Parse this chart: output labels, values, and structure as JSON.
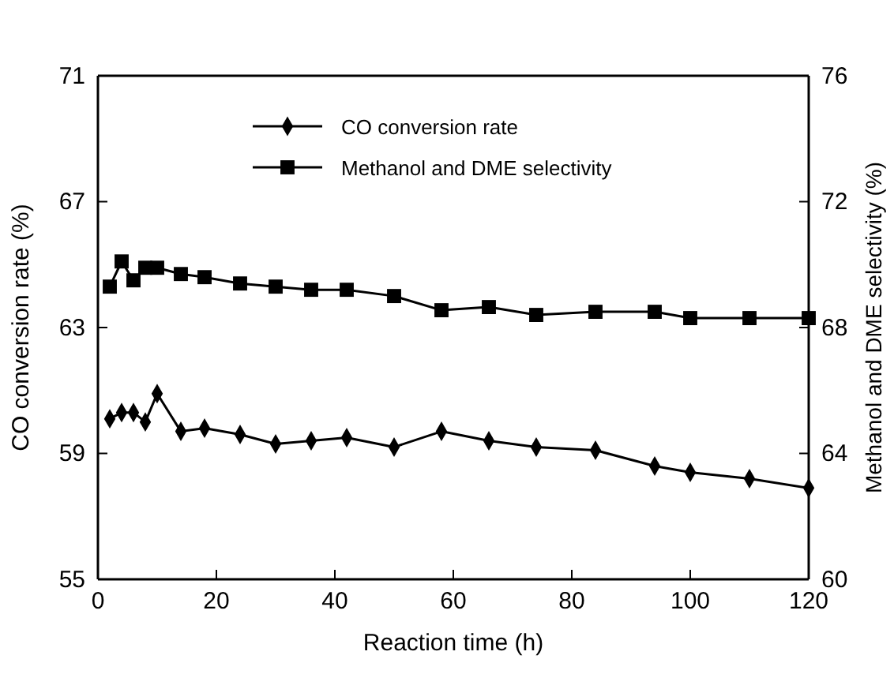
{
  "chart_data": {
    "type": "line",
    "xlabel": "Reaction time (h)",
    "ylabel": "CO conversion rate (%)",
    "y2label": "Methanol and DME selectivity (%)",
    "x": [
      2,
      4,
      6,
      8,
      10,
      14,
      18,
      24,
      30,
      36,
      42,
      50,
      58,
      66,
      74,
      84,
      94,
      100,
      110,
      120
    ],
    "series": [
      {
        "name": "CO conversion rate",
        "color": "#000000",
        "marker": "diamond",
        "values": [
          60.1,
          60.3,
          60.3,
          60.0,
          60.9,
          59.7,
          59.8,
          59.6,
          59.3,
          59.4,
          59.5,
          59.2,
          59.7,
          59.4,
          59.2,
          59.1,
          58.6,
          58.4,
          58.2,
          57.9
        ]
      },
      {
        "name": "Methanol and DME selectivity",
        "color": "#000000",
        "marker": "square",
        "axis": "y2",
        "values": [
          69.3,
          70.1,
          69.5,
          69.9,
          69.9,
          69.7,
          69.6,
          69.4,
          69.3,
          69.2,
          69.2,
          69.0,
          68.55,
          68.65,
          68.4,
          68.5,
          68.5,
          68.3,
          68.3,
          68.3
        ]
      }
    ],
    "xlim": [
      0,
      120
    ],
    "xticks": [
      0,
      20,
      40,
      60,
      80,
      100,
      120
    ],
    "ylim": [
      55,
      71
    ],
    "yticks": [
      55,
      59,
      63,
      67,
      71
    ],
    "y2lim": [
      60,
      76
    ],
    "y2ticks": [
      60,
      64,
      68,
      72,
      76
    ],
    "legend": "top",
    "line_style": "solid"
  }
}
